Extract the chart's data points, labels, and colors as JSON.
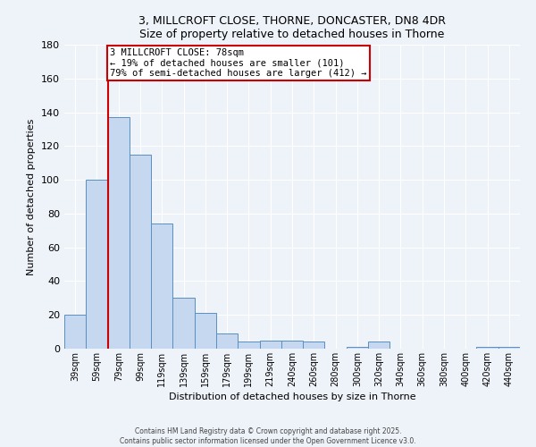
{
  "title1": "3, MILLCROFT CLOSE, THORNE, DONCASTER, DN8 4DR",
  "title2": "Size of property relative to detached houses in Thorne",
  "xlabel": "Distribution of detached houses by size in Thorne",
  "ylabel": "Number of detached properties",
  "categories": [
    "39sqm",
    "59sqm",
    "79sqm",
    "99sqm",
    "119sqm",
    "139sqm",
    "159sqm",
    "179sqm",
    "199sqm",
    "219sqm",
    "240sqm",
    "260sqm",
    "280sqm",
    "300sqm",
    "320sqm",
    "340sqm",
    "360sqm",
    "380sqm",
    "400sqm",
    "420sqm",
    "440sqm"
  ],
  "values": [
    20,
    100,
    137,
    115,
    74,
    30,
    21,
    9,
    4,
    5,
    5,
    4,
    0,
    1,
    4,
    0,
    0,
    0,
    0,
    1,
    1
  ],
  "bar_color": "#c5d8f0",
  "bar_edge_color": "#5a8fc2",
  "red_line_index": 2,
  "annotation_line1": "3 MILLCROFT CLOSE: 78sqm",
  "annotation_line2": "← 19% of detached houses are smaller (101)",
  "annotation_line3": "79% of semi-detached houses are larger (412) →",
  "annotation_box_color": "#ffffff",
  "annotation_box_edge": "#cc0000",
  "ylim": [
    0,
    180
  ],
  "yticks": [
    0,
    20,
    40,
    60,
    80,
    100,
    120,
    140,
    160,
    180
  ],
  "footer1": "Contains HM Land Registry data © Crown copyright and database right 2025.",
  "footer2": "Contains public sector information licensed under the Open Government Licence v3.0.",
  "bg_color": "#eef2f9",
  "plot_bg_color": "#eef2f9",
  "grid_color": "#ffffff",
  "title_fontsize": 9,
  "tick_fontsize": 7,
  "axis_label_fontsize": 8,
  "annotation_fontsize": 7.5,
  "footer_fontsize": 5.5
}
